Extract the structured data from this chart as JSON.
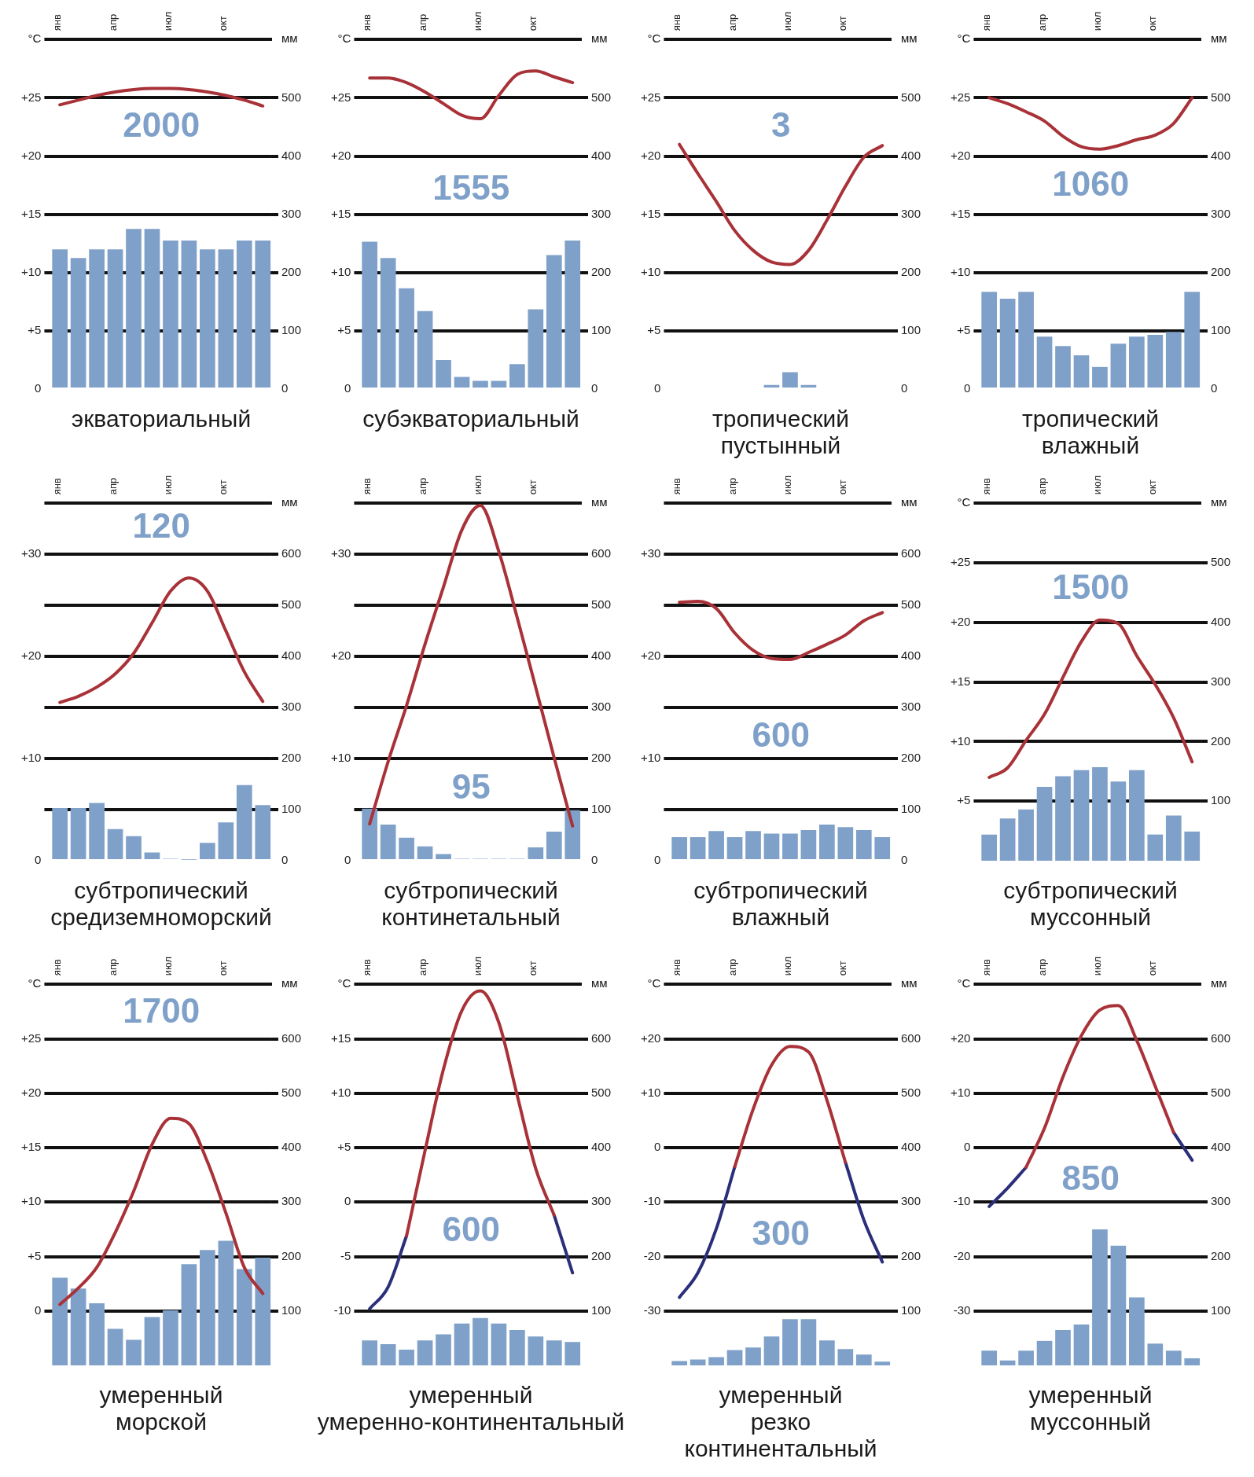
{
  "chart_data": [
    {
      "type": "bar",
      "title": "экваториальный",
      "categories": [
        "янв",
        null,
        null,
        "апр",
        null,
        null,
        "июл",
        null,
        null,
        "окт",
        null,
        null
      ],
      "ylabel": "°C",
      "y2label": "мм",
      "annotations": [
        "2000"
      ],
      "grid": "y",
      "marker": "none",
      "series": [
        {
          "type": "bar",
          "axis": "y2",
          "color": "#7fa1c9",
          "values": [
            240,
            225,
            240,
            240,
            275,
            275,
            255,
            255,
            240,
            240,
            255,
            255
          ]
        },
        {
          "type": "line",
          "color": "#a83238",
          "values": [
            24.4,
            24.8,
            25.2,
            25.5,
            25.7,
            25.8,
            25.8,
            25.7,
            25.5,
            25.2,
            24.8,
            24.3
          ]
        }
      ],
      "ylim": [
        0,
        30
      ],
      "yticks": [
        0,
        {
          "value": 5,
          "label": "+5"
        },
        {
          "value": 10,
          "label": "+10"
        },
        {
          "value": 15,
          "label": "+15"
        },
        {
          "value": 20,
          "label": "+20"
        },
        {
          "value": 25,
          "label": "+25"
        },
        {
          "value": 30,
          "label": null
        }
      ],
      "y2lim": [
        0,
        600
      ],
      "y2ticks": [
        0,
        100,
        200,
        300,
        400,
        500
      ]
    },
    {
      "type": "bar",
      "title": "субэкваториальный",
      "categories": [
        "янв",
        null,
        null,
        "апр",
        null,
        null,
        "июл",
        null,
        null,
        "окт",
        null,
        null
      ],
      "ylabel": "°C",
      "y2label": "мм",
      "annotations": [
        "1555"
      ],
      "grid": "y",
      "marker": "none",
      "series": [
        {
          "type": "bar",
          "axis": "y2",
          "color": "#7fa1c9",
          "values": [
            253,
            225,
            173,
            134,
            50,
            21,
            14,
            14,
            43,
            137,
            230,
            255
          ]
        },
        {
          "type": "line",
          "color": "#a83238",
          "values": [
            26.7,
            26.7,
            26.3,
            25.5,
            24.5,
            23.5,
            23.2,
            25.2,
            27.0,
            27.3,
            26.8,
            26.3
          ]
        }
      ],
      "ylim": [
        0,
        30
      ],
      "yticks": [
        0,
        {
          "value": 5,
          "label": "+5"
        },
        {
          "value": 10,
          "label": "+10"
        },
        {
          "value": 15,
          "label": "+15"
        },
        {
          "value": 20,
          "label": "+20"
        },
        {
          "value": 25,
          "label": "+25"
        },
        {
          "value": 30,
          "label": null
        }
      ],
      "y2lim": [
        0,
        600
      ],
      "y2ticks": [
        0,
        100,
        200,
        300,
        400,
        500
      ]
    },
    {
      "type": "bar",
      "title": "тропический пустынный",
      "categories": [
        "янв",
        null,
        null,
        "апр",
        null,
        null,
        "июл",
        null,
        null,
        "окт",
        null,
        null
      ],
      "ylabel": "°C",
      "y2label": "мм",
      "annotations": [
        "3"
      ],
      "grid": "y",
      "marker": "none",
      "series": [
        {
          "type": "bar",
          "axis": "y2",
          "color": "#7fa1c9",
          "values": [
            0,
            0,
            0,
            0,
            0,
            7,
            29,
            7,
            0,
            0,
            0,
            0
          ]
        },
        {
          "type": "line",
          "color": "#a83238",
          "values": [
            21.0,
            18.5,
            16.1,
            13.6,
            11.9,
            10.9,
            10.7,
            11.9,
            14.5,
            17.4,
            19.9,
            20.9
          ]
        }
      ],
      "ylim": [
        0,
        30
      ],
      "yticks": [
        0,
        {
          "value": 5,
          "label": "+5"
        },
        {
          "value": 10,
          "label": "+10"
        },
        {
          "value": 15,
          "label": "+15"
        },
        {
          "value": 20,
          "label": "+20"
        },
        {
          "value": 25,
          "label": "+25"
        },
        {
          "value": 30,
          "label": null
        }
      ],
      "y2lim": [
        0,
        600
      ],
      "y2ticks": [
        0,
        100,
        200,
        300,
        400,
        500
      ]
    },
    {
      "type": "bar",
      "title": "тропический влажный",
      "categories": [
        "янв",
        null,
        null,
        "апр",
        null,
        null,
        "июл",
        null,
        null,
        "окт",
        null,
        null
      ],
      "ylabel": "°C",
      "y2label": "мм",
      "annotations": [
        "1060"
      ],
      "grid": "y",
      "marker": "none",
      "series": [
        {
          "type": "bar",
          "axis": "y2",
          "color": "#7fa1c9",
          "values": [
            167,
            155,
            167,
            90,
            74,
            58,
            38,
            78,
            90,
            93,
            98,
            167
          ]
        },
        {
          "type": "line",
          "color": "#a83238",
          "values": [
            25.0,
            24.5,
            23.8,
            23.0,
            21.7,
            20.8,
            20.6,
            20.9,
            21.4,
            21.8,
            22.8,
            25.0
          ]
        }
      ],
      "ylim": [
        0,
        30
      ],
      "yticks": [
        0,
        {
          "value": 5,
          "label": "+5"
        },
        {
          "value": 10,
          "label": "+10"
        },
        {
          "value": 15,
          "label": "+15"
        },
        {
          "value": 20,
          "label": "+20"
        },
        {
          "value": 25,
          "label": "+25"
        },
        {
          "value": 30,
          "label": null
        }
      ],
      "y2lim": [
        0,
        600
      ],
      "y2ticks": [
        0,
        100,
        200,
        300,
        400,
        500
      ]
    },
    {
      "type": "bar",
      "title": "субтропический средиземноморский",
      "categories": [
        "янв",
        null,
        null,
        "апр",
        null,
        null,
        "июл",
        null,
        null,
        "окт",
        null,
        null
      ],
      "y2label": "мм",
      "annotations": [
        "120"
      ],
      "grid": "y",
      "marker": "none",
      "series": [
        {
          "type": "bar",
          "axis": "y2",
          "color": "#7fa1c9",
          "values": [
            103,
            103,
            113,
            62,
            48,
            16,
            4,
            2,
            35,
            75,
            148,
            109
          ]
        },
        {
          "type": "line",
          "color": "#a83238",
          "values": [
            15.5,
            16.1,
            17.0,
            18.3,
            20.3,
            23.3,
            26.4,
            27.7,
            26.4,
            22.5,
            18.5,
            15.6
          ]
        }
      ],
      "ylim": [
        0,
        35
      ],
      "yticks": [
        0,
        {
          "value": 5,
          "label": null
        },
        {
          "value": 10,
          "label": "+10"
        },
        {
          "value": 15,
          "label": null
        },
        {
          "value": 20,
          "label": "+20"
        },
        {
          "value": 25,
          "label": null
        },
        {
          "value": 30,
          "label": "+30"
        },
        {
          "value": 35,
          "label": null
        }
      ],
      "y2lim": [
        0,
        700
      ],
      "y2ticks": [
        0,
        100,
        200,
        300,
        400,
        500,
        600
      ]
    },
    {
      "type": "bar",
      "title": "субтропический континетальный",
      "categories": [
        "янв",
        null,
        null,
        "апр",
        null,
        null,
        "июл",
        null,
        null,
        "окт",
        null,
        null
      ],
      "y2label": "мм",
      "annotations": [
        "95"
      ],
      "grid": "y",
      "marker": "none",
      "series": [
        {
          "type": "bar",
          "axis": "y2",
          "color": "#7fa1c9",
          "values": [
            102,
            71,
            45,
            28,
            13,
            4,
            4,
            4,
            4,
            26,
            57,
            99
          ]
        },
        {
          "type": "line",
          "color": "#a83238",
          "values": [
            3.6,
            9.7,
            15.2,
            21.2,
            26.8,
            32.4,
            34.8,
            30.3,
            23.8,
            17.0,
            10.1,
            3.4
          ]
        }
      ],
      "ylim": [
        0,
        35
      ],
      "yticks": [
        0,
        {
          "value": 5,
          "label": null
        },
        {
          "value": 10,
          "label": "+10"
        },
        {
          "value": 15,
          "label": null
        },
        {
          "value": 20,
          "label": "+20"
        },
        {
          "value": 25,
          "label": null
        },
        {
          "value": 30,
          "label": "+30"
        },
        {
          "value": 35,
          "label": null
        }
      ],
      "y2lim": [
        0,
        700
      ],
      "y2ticks": [
        0,
        100,
        200,
        300,
        400,
        500,
        600
      ]
    },
    {
      "type": "bar",
      "title": "субтропический влажный",
      "categories": [
        "янв",
        null,
        null,
        "апр",
        null,
        null,
        "июл",
        null,
        null,
        "окт",
        null,
        null
      ],
      "y2label": "мм",
      "annotations": [
        "600"
      ],
      "grid": "y",
      "marker": "none",
      "series": [
        {
          "type": "bar",
          "axis": "y2",
          "color": "#7fa1c9",
          "values": [
            46,
            46,
            58,
            46,
            58,
            53,
            53,
            60,
            71,
            66,
            60,
            46
          ]
        },
        {
          "type": "line",
          "color": "#a83238",
          "values": [
            25.3,
            25.4,
            24.7,
            22.3,
            20.6,
            19.8,
            19.7,
            20.4,
            21.2,
            22.1,
            23.5,
            24.3
          ]
        }
      ],
      "ylim": [
        0,
        35
      ],
      "yticks": [
        0,
        {
          "value": 5,
          "label": null
        },
        {
          "value": 10,
          "label": "+10"
        },
        {
          "value": 15,
          "label": null
        },
        {
          "value": 20,
          "label": "+20"
        },
        {
          "value": 25,
          "label": null
        },
        {
          "value": 30,
          "label": "+30"
        },
        {
          "value": 35,
          "label": null
        }
      ],
      "y2lim": [
        0,
        700
      ],
      "y2ticks": [
        0,
        100,
        200,
        300,
        400,
        500,
        600
      ]
    },
    {
      "type": "bar",
      "title": "субтропический муссонный",
      "categories": [
        "янв",
        null,
        null,
        "апр",
        null,
        null,
        "июл",
        null,
        null,
        "окт",
        null,
        null
      ],
      "ylabel": "°C",
      "y2label": "мм",
      "annotations": [
        "1500"
      ],
      "grid": "y",
      "marker": "none",
      "series": [
        {
          "type": "bar",
          "axis": "y2",
          "color": "#7fa1c9",
          "values": [
            44,
            71,
            86,
            124,
            142,
            152,
            157,
            133,
            152,
            44,
            76,
            49
          ]
        },
        {
          "type": "line",
          "color": "#a83238",
          "values": [
            7.0,
            7.8,
            10.1,
            12.3,
            15.4,
            18.4,
            20.2,
            19.9,
            17.2,
            14.8,
            12.0,
            8.3
          ]
        }
      ],
      "ylim": [
        0,
        30
      ],
      "yticks": [
        {
          "value": 5,
          "label": "+5"
        },
        {
          "value": 10,
          "label": "+10"
        },
        {
          "value": 15,
          "label": "+15"
        },
        {
          "value": 20,
          "label": "+20"
        },
        {
          "value": 25,
          "label": "+25"
        },
        {
          "value": 30,
          "label": null
        }
      ],
      "y2lim": [
        0,
        600
      ],
      "y2ticks": [
        100,
        200,
        300,
        400,
        500
      ]
    },
    {
      "type": "bar",
      "title": "умеренный морской",
      "categories": [
        "янв",
        null,
        null,
        "апр",
        null,
        null,
        "июл",
        null,
        null,
        "окт",
        null,
        null
      ],
      "ylabel": "°C",
      "y2label": "мм",
      "annotations": [
        "1700"
      ],
      "grid": "y",
      "marker": "none",
      "series": [
        {
          "type": "bar",
          "axis": "y2",
          "color": "#7fa1c9",
          "values": [
            161,
            141,
            114,
            67,
            47,
            89,
            101,
            186,
            212,
            229,
            177,
            198
          ]
        },
        {
          "type": "line",
          "color": "#a83238",
          "values": [
            0.6,
            2.1,
            4.0,
            7.2,
            11.0,
            15.3,
            17.7,
            17.2,
            13.7,
            9.0,
            4.0,
            1.6
          ]
        }
      ],
      "ylim": [
        -5,
        30
      ],
      "yticks": [
        0,
        {
          "value": 5,
          "label": "+5"
        },
        {
          "value": 10,
          "label": "+10"
        },
        {
          "value": 15,
          "label": "+15"
        },
        {
          "value": 20,
          "label": "+20"
        },
        {
          "value": 25,
          "label": "+25"
        },
        {
          "value": 30,
          "label": null
        }
      ],
      "y2lim": [
        0,
        700
      ],
      "y2ticks": [
        100,
        200,
        300,
        400,
        500,
        600
      ]
    },
    {
      "type": "bar",
      "title": "умеренный умеренно-континентальный",
      "categories": [
        "янв",
        null,
        null,
        "апр",
        null,
        null,
        "июл",
        null,
        null,
        "окт",
        null,
        null
      ],
      "ylabel": "°C",
      "y2label": "мм",
      "annotations": [
        "600"
      ],
      "grid": "y",
      "marker": "none",
      "series": [
        {
          "type": "bar",
          "axis": "y2",
          "color": "#7fa1c9",
          "values": [
            46,
            39,
            29,
            46,
            57,
            77,
            87,
            77,
            65,
            53,
            46,
            43
          ]
        },
        {
          "type": "line",
          "color": "#a83238",
          "values": [
            null,
            null,
            -3.1,
            4.7,
            12.2,
            17.6,
            19.4,
            16.5,
            9.8,
            3.1,
            -1.2,
            null
          ]
        },
        {
          "type": "line",
          "color": "#2b2f7a",
          "values": [
            -9.8,
            -7.8,
            -3.1,
            null,
            null,
            null,
            null,
            null,
            null,
            null,
            -1.2,
            -6.5
          ]
        }
      ],
      "ylim": [
        -15,
        20
      ],
      "yticks": [
        -10,
        -5,
        0,
        {
          "value": 5,
          "label": "+5"
        },
        {
          "value": 10,
          "label": "+10"
        },
        {
          "value": 15,
          "label": "+15"
        },
        {
          "value": 20,
          "label": null
        }
      ],
      "y2lim": [
        0,
        700
      ],
      "y2ticks": [
        100,
        200,
        300,
        400,
        500,
        600
      ]
    },
    {
      "type": "bar",
      "title": "умеренный резко континентальный",
      "categories": [
        "янв",
        null,
        null,
        "апр",
        null,
        null,
        "июл",
        null,
        null,
        "окт",
        null,
        null
      ],
      "ylabel": "°C",
      "y2label": "мм",
      "annotations": [
        "300"
      ],
      "grid": "y",
      "marker": "none",
      "series": [
        {
          "type": "bar",
          "axis": "y2",
          "color": "#7fa1c9",
          "values": [
            8,
            11,
            15,
            28,
            33,
            53,
            85,
            85,
            46,
            30,
            20,
            7
          ]
        },
        {
          "type": "line",
          "color": "#a83238",
          "values": [
            null,
            null,
            null,
            -3.5,
            7.1,
            15.2,
            18.6,
            17.6,
            8.7,
            -2.7,
            null,
            null
          ]
        },
        {
          "type": "line",
          "color": "#2b2f7a",
          "values": [
            -27.5,
            -23,
            -14.9,
            -3.5,
            null,
            null,
            null,
            null,
            null,
            -2.7,
            -13.3,
            -21
          ]
        }
      ],
      "ylim": [
        -40,
        30
      ],
      "yticks": [
        -30,
        -20,
        -10,
        0,
        {
          "value": 10,
          "label": "+10"
        },
        {
          "value": 20,
          "label": "+20"
        },
        {
          "value": 30,
          "label": null
        }
      ],
      "y2lim": [
        0,
        700
      ],
      "y2ticks": [
        100,
        200,
        300,
        400,
        500,
        600
      ]
    },
    {
      "type": "bar",
      "title": "умеренный муссонный",
      "categories": [
        "янв",
        null,
        null,
        "апр",
        null,
        null,
        "июл",
        null,
        null,
        "окт",
        null,
        null
      ],
      "ylabel": "°C",
      "y2label": "мм",
      "annotations": [
        "850"
      ],
      "grid": "y",
      "marker": "none",
      "series": [
        {
          "type": "bar",
          "axis": "y2",
          "color": "#7fa1c9",
          "values": [
            27,
            9,
            27,
            45,
            65,
            75,
            250,
            220,
            125,
            40,
            27,
            13
          ]
        },
        {
          "type": "line",
          "color": "#a83238",
          "values": [
            null,
            null,
            -3.6,
            3.6,
            13.0,
            20.6,
            25.3,
            26.1,
            19.7,
            11.3,
            2.8,
            null
          ]
        },
        {
          "type": "line",
          "color": "#2b2f7a",
          "values": [
            -10.8,
            -7.4,
            -3.6,
            null,
            null,
            null,
            null,
            null,
            null,
            null,
            2.8,
            -2.3
          ]
        }
      ],
      "ylim": [
        -40,
        30
      ],
      "yticks": [
        -30,
        -20,
        -10,
        0,
        {
          "value": 10,
          "label": "+10"
        },
        {
          "value": 20,
          "label": "+20"
        },
        {
          "value": 30,
          "label": null
        }
      ],
      "y2lim": [
        0,
        700
      ],
      "y2ticks": [
        100,
        200,
        300,
        400,
        500,
        600
      ]
    }
  ]
}
